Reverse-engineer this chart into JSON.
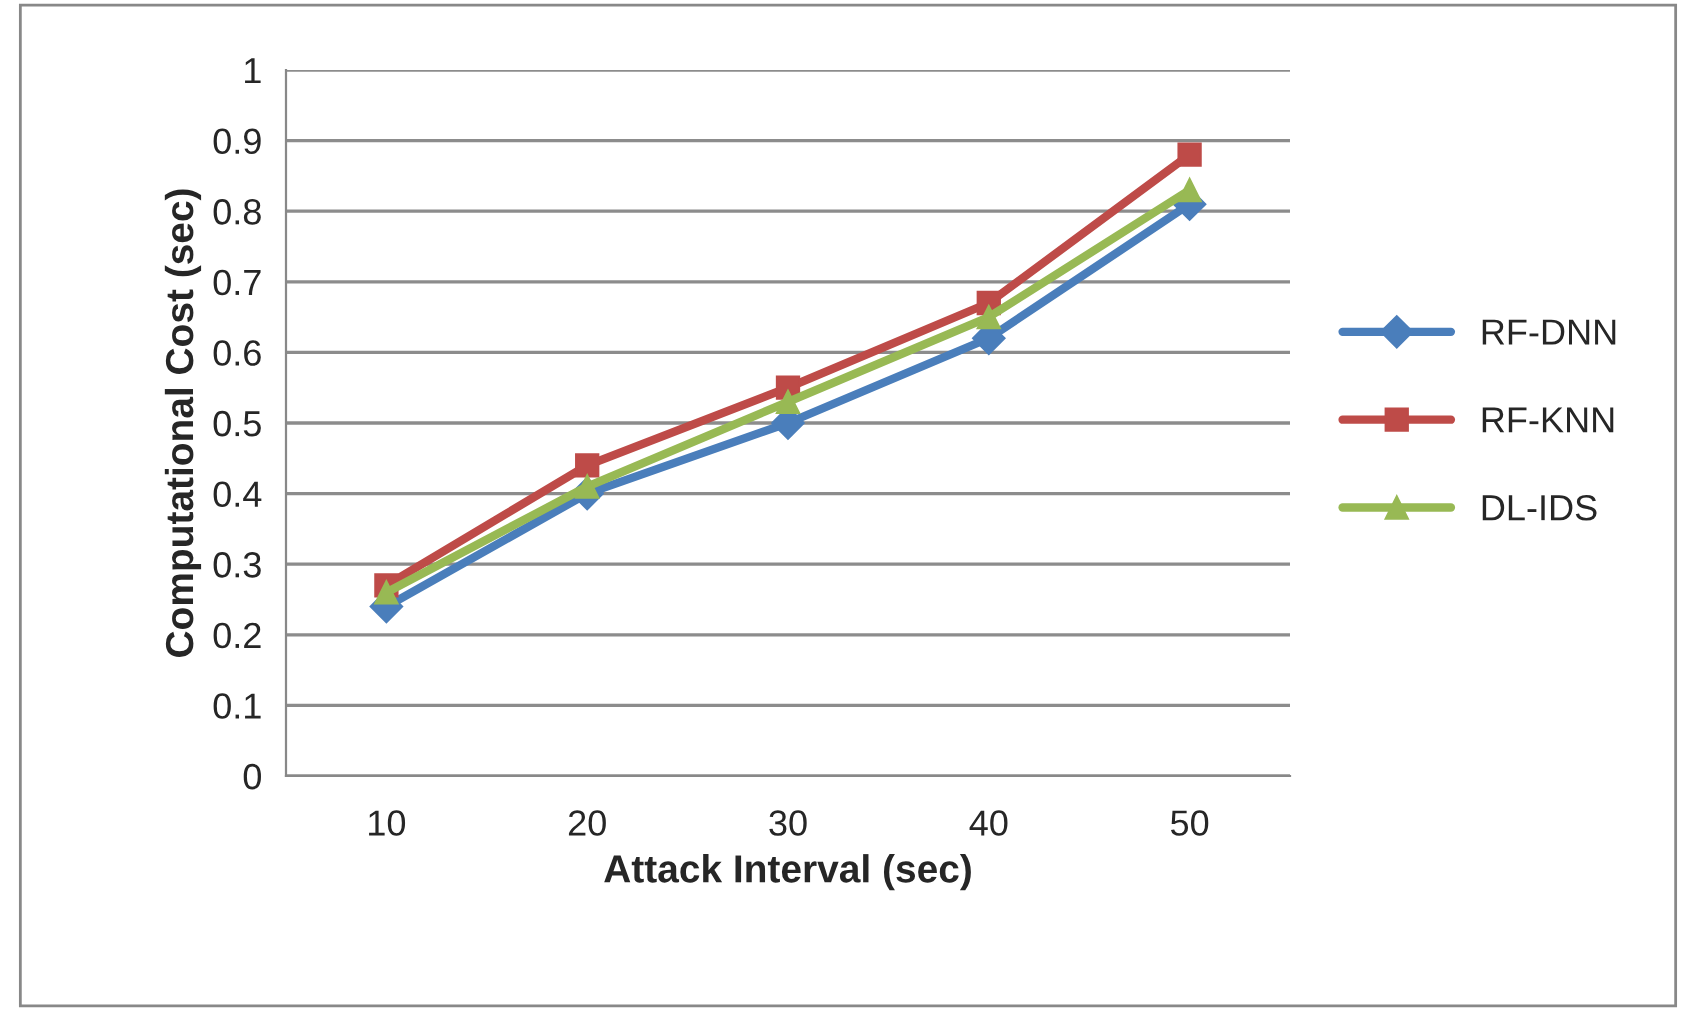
{
  "chart_data": {
    "type": "line",
    "xlabel": "Attack Interval (sec)",
    "ylabel": "Computational Cost (sec)",
    "categories": [
      "10",
      "20",
      "30",
      "40",
      "50"
    ],
    "series": [
      {
        "name": "RF-DNN",
        "color": "#4a7ebb",
        "marker": "diamond",
        "values": [
          0.24,
          0.4,
          0.5,
          0.62,
          0.81
        ]
      },
      {
        "name": "RF-KNN",
        "color": "#be4b48",
        "marker": "square",
        "values": [
          0.27,
          0.44,
          0.55,
          0.67,
          0.88
        ]
      },
      {
        "name": "DL-IDS",
        "color": "#98b954",
        "marker": "triangle",
        "values": [
          0.26,
          0.41,
          0.53,
          0.65,
          0.83
        ]
      }
    ],
    "ylim": [
      0,
      1
    ],
    "yticks": [
      0,
      0.1,
      0.2,
      0.3,
      0.4,
      0.5,
      0.6,
      0.7,
      0.8,
      0.9,
      1
    ],
    "grid": "y",
    "legend": "right",
    "line_style": "solid"
  }
}
